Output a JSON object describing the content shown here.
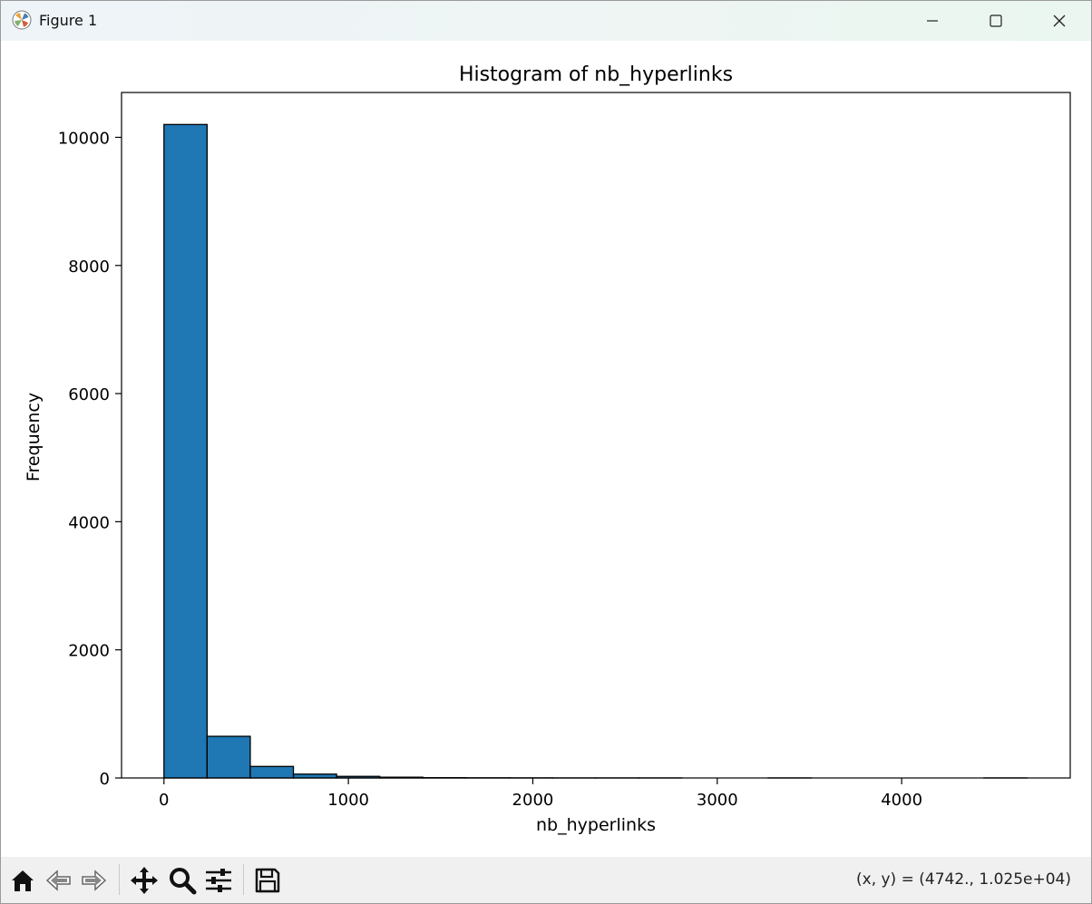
{
  "window": {
    "title": "Figure 1",
    "controls": {
      "minimize": "minimize",
      "maximize": "maximize",
      "close": "close"
    }
  },
  "chart_data": {
    "type": "bar",
    "subtype": "histogram",
    "title": "Histogram of nb_hyperlinks",
    "xlabel": "nb_hyperlinks",
    "ylabel": "Frequency",
    "bin_edges": [
      0,
      234,
      468,
      702,
      936,
      1170,
      1404,
      1638,
      1872,
      2106,
      2340,
      2574,
      2808,
      3042,
      3276,
      3510,
      3744,
      3978,
      4212,
      4446,
      4680
    ],
    "values": [
      10200,
      650,
      180,
      60,
      25,
      12,
      5,
      3,
      2,
      1,
      1,
      1,
      0,
      0,
      1,
      0,
      0,
      0,
      0,
      1
    ],
    "xlim": [
      -230,
      4914
    ],
    "ylim": [
      0,
      10700
    ],
    "xticks": [
      0,
      1000,
      2000,
      3000,
      4000
    ],
    "yticks": [
      0,
      2000,
      4000,
      6000,
      8000,
      10000
    ],
    "bar_color": "#1f77b4",
    "edge_color": "#000000",
    "grid": false,
    "legend": "none"
  },
  "toolbar": {
    "items": [
      {
        "name": "home-icon",
        "icon": "home"
      },
      {
        "name": "back-icon",
        "icon": "back-arrow"
      },
      {
        "name": "forward-icon",
        "icon": "forward-arrow"
      },
      {
        "name": "pan-icon",
        "icon": "move"
      },
      {
        "name": "zoom-icon",
        "icon": "magnifier"
      },
      {
        "name": "configure-icon",
        "icon": "sliders"
      },
      {
        "name": "save-icon",
        "icon": "floppy"
      }
    ],
    "coords": "(x, y) = (4742., 1.025e+04)"
  }
}
